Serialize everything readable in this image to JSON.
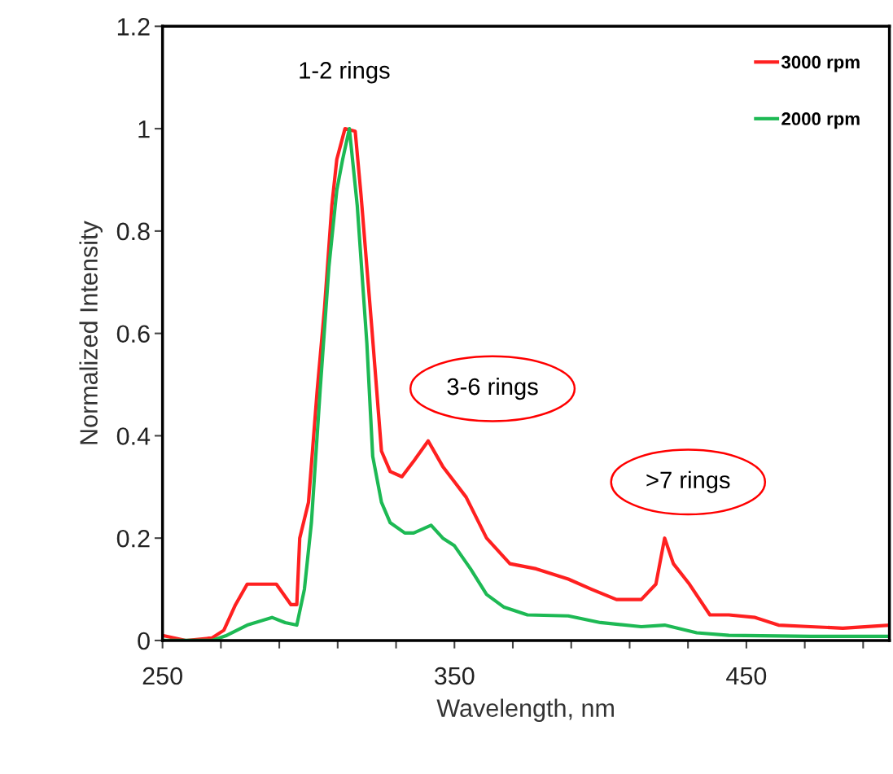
{
  "chart_data": {
    "type": "line",
    "xlabel": "Wavelength, nm",
    "ylabel": "Normalized Intensity",
    "xlim": [
      250,
      499
    ],
    "ylim": [
      0,
      1.2
    ],
    "xticks": [
      250,
      {
        "value": 270,
        "label": null
      },
      {
        "value": 290,
        "label": null
      },
      {
        "value": 310,
        "label": null
      },
      {
        "value": 330,
        "label": null
      },
      350,
      {
        "value": 370,
        "label": null
      },
      {
        "value": 390,
        "label": null
      },
      {
        "value": 410,
        "label": null
      },
      {
        "value": 430,
        "label": null
      },
      450,
      {
        "value": 470,
        "label": null
      },
      {
        "value": 490,
        "label": null
      }
    ],
    "yticks": [
      0,
      0.2,
      0.4,
      0.6,
      0.8,
      1,
      1.2
    ],
    "grid": false,
    "legend": "top right",
    "marker": "none",
    "line_style": "solid",
    "series": [
      {
        "name": "3000 rpm",
        "color": "#ff2020",
        "x": [
          250,
          258,
          267,
          271,
          275,
          279,
          283,
          289,
          294,
          296,
          297,
          300,
          303,
          305.5,
          308,
          309.7,
          312.5,
          316,
          318,
          321.7,
          325,
          328,
          332,
          336,
          341,
          346,
          350,
          354,
          361,
          369,
          378,
          389,
          397,
          405.5,
          414,
          419,
          422,
          425,
          430.5,
          437.5,
          444,
          453,
          461,
          472,
          483,
          499
        ],
        "values": [
          0.01,
          0.0,
          0.005,
          0.02,
          0.07,
          0.11,
          0.11,
          0.11,
          0.07,
          0.07,
          0.2,
          0.27,
          0.49,
          0.65,
          0.85,
          0.94,
          1.0,
          0.995,
          0.87,
          0.61,
          0.37,
          0.33,
          0.32,
          0.35,
          0.39,
          0.34,
          0.31,
          0.28,
          0.2,
          0.15,
          0.14,
          0.12,
          0.1,
          0.08,
          0.08,
          0.11,
          0.2,
          0.15,
          0.11,
          0.05,
          0.05,
          0.045,
          0.03,
          0.027,
          0.024,
          0.03
        ]
      },
      {
        "name": "2000 rpm",
        "color": "#1db954",
        "x": [
          250,
          267,
          272,
          279,
          287.5,
          292,
          296,
          298.6,
          301,
          304,
          307,
          309.7,
          311.7,
          314,
          316.7,
          320,
          322,
          325,
          328,
          333,
          336,
          342,
          346,
          350,
          355.5,
          361,
          367,
          375,
          389,
          400,
          414,
          422,
          433,
          444,
          472,
          499
        ],
        "values": [
          0,
          0,
          0.01,
          0.03,
          0.045,
          0.035,
          0.03,
          0.1,
          0.23,
          0.49,
          0.73,
          0.88,
          0.94,
          1.0,
          0.85,
          0.58,
          0.36,
          0.27,
          0.23,
          0.21,
          0.21,
          0.225,
          0.2,
          0.185,
          0.14,
          0.09,
          0.065,
          0.05,
          0.048,
          0.035,
          0.027,
          0.03,
          0.015,
          0.01,
          0.008,
          0.008
        ]
      }
    ],
    "annotations": [
      "1-2 rings",
      "3-6 rings",
      ">7 rings"
    ]
  }
}
